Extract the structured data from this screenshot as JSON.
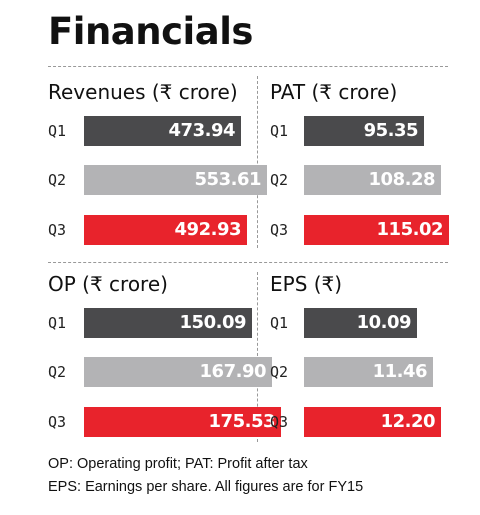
{
  "title": "Financials",
  "colors": {
    "Q1": "#4a4a4c",
    "Q2": "#b3b3b5",
    "Q3": "#e8232c"
  },
  "chart_data": [
    {
      "type": "bar",
      "orientation": "horizontal",
      "title": "Revenues (₹ crore)",
      "categories": [
        "Q1",
        "Q2",
        "Q3"
      ],
      "values": [
        473.94,
        553.61,
        492.93
      ],
      "value_labels": [
        "473.94",
        "553.61",
        "492.93"
      ]
    },
    {
      "type": "bar",
      "orientation": "horizontal",
      "title": "PAT (₹ crore)",
      "categories": [
        "Q1",
        "Q2",
        "Q3"
      ],
      "values": [
        95.35,
        108.28,
        115.02
      ],
      "value_labels": [
        "95.35",
        "108.28",
        "115.02"
      ]
    },
    {
      "type": "bar",
      "orientation": "horizontal",
      "title": "OP (₹ crore)",
      "categories": [
        "Q1",
        "Q2",
        "Q3"
      ],
      "values": [
        150.09,
        167.9,
        175.53
      ],
      "value_labels": [
        "150.09",
        "167.90",
        "175.53"
      ]
    },
    {
      "type": "bar",
      "orientation": "horizontal",
      "title": "EPS (₹)",
      "categories": [
        "Q1",
        "Q2",
        "Q3"
      ],
      "values": [
        10.09,
        11.46,
        12.2
      ],
      "value_labels": [
        "10.09",
        "11.46",
        "12.20"
      ]
    }
  ],
  "footnotes": [
    "OP: Operating profit; PAT: Profit after tax",
    "EPS: Earnings per share. All figures are for FY15"
  ]
}
